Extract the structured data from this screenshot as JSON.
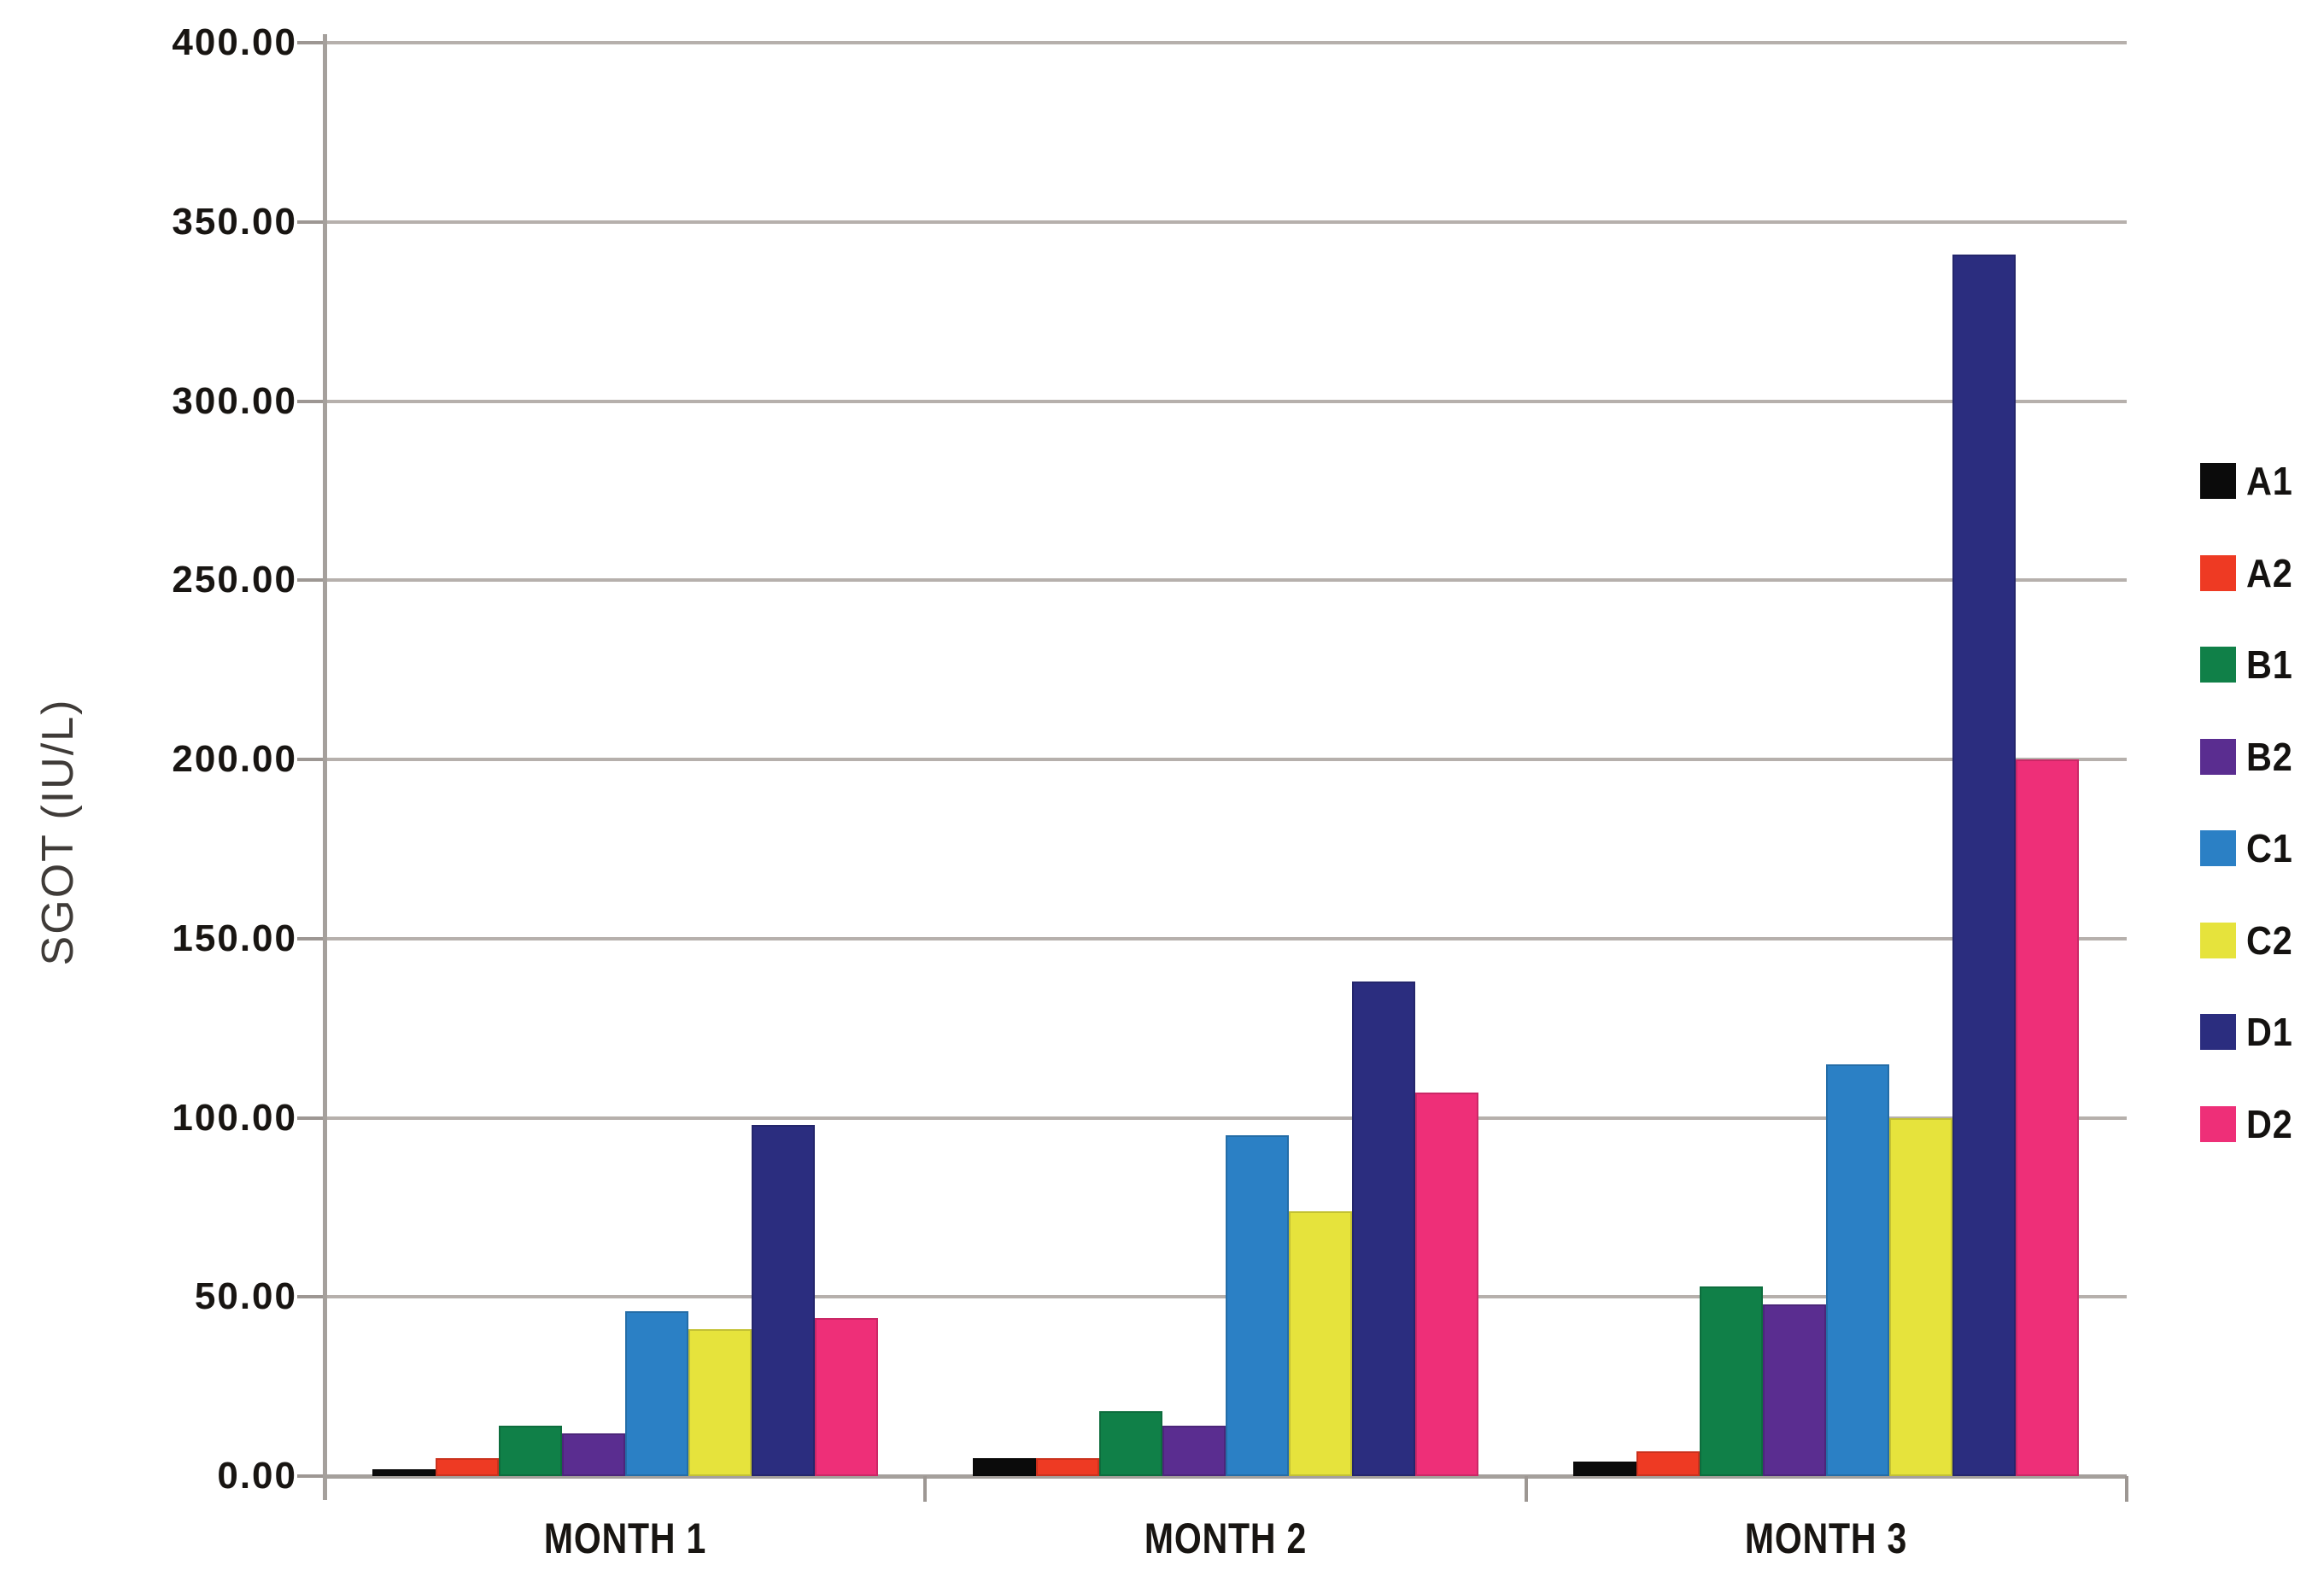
{
  "chart_data": {
    "type": "bar",
    "title": "",
    "xlabel": "",
    "ylabel": "SGOT (IU/L)",
    "categories": [
      "MONTH 1",
      "MONTH 2",
      "MONTH 3"
    ],
    "series": [
      {
        "name": "A1",
        "color": "#0b0b0b",
        "values": [
          2,
          5,
          4
        ]
      },
      {
        "name": "A2",
        "color": "#ee3a23",
        "values": [
          5,
          5,
          7
        ]
      },
      {
        "name": "B1",
        "color": "#108048",
        "values": [
          14,
          18,
          53
        ]
      },
      {
        "name": "B2",
        "color": "#5a2d90",
        "values": [
          12,
          14,
          48
        ]
      },
      {
        "name": "C1",
        "color": "#2b80c5",
        "values": [
          46,
          95,
          115
        ]
      },
      {
        "name": "C2",
        "color": "#e6e33c",
        "values": [
          41,
          74,
          100
        ]
      },
      {
        "name": "D1",
        "color": "#2b2d7f",
        "values": [
          98,
          138,
          341
        ]
      },
      {
        "name": "D2",
        "color": "#ee2f78",
        "values": [
          44,
          107,
          200
        ]
      }
    ],
    "ylim": [
      0,
      400
    ],
    "y_tick_step": 50,
    "y_tick_labels": [
      "0.00",
      "50.00",
      "100.00",
      "150.00",
      "200.00",
      "250.00",
      "300.00",
      "350.00",
      "400.00"
    ],
    "grid": true,
    "legend_position": "right"
  },
  "colors": {
    "background": "#ffffff",
    "gridline": "#b6b0ac",
    "axis": "#a5a09c",
    "tick_text": "#181512",
    "axis_title_text": "#3f3b38"
  }
}
